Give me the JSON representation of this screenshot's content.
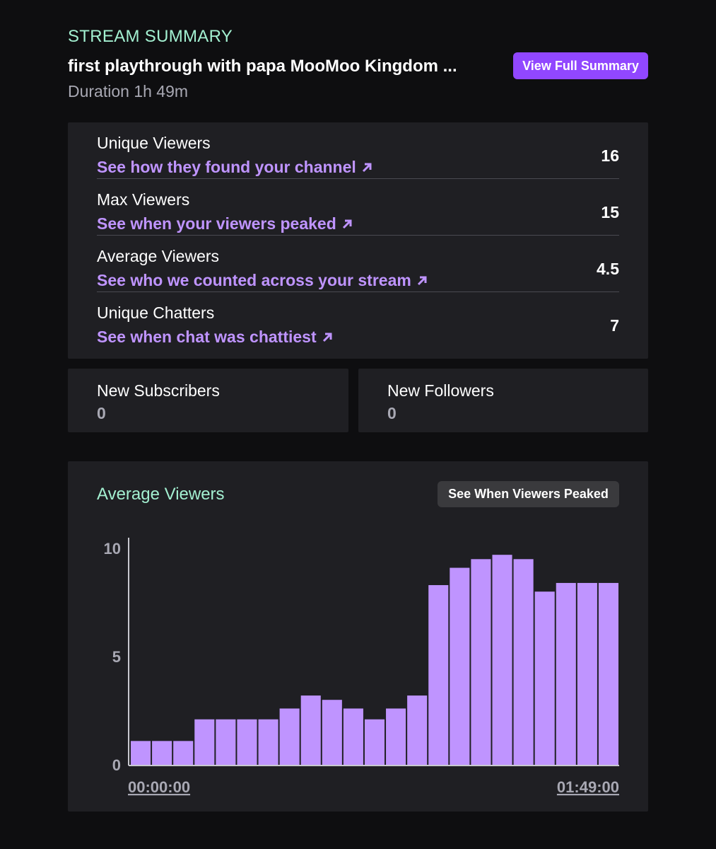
{
  "header": {
    "eyebrow": "STREAM SUMMARY",
    "stream_title": "first playthrough with papa MooMoo Kingdom ...",
    "duration": "Duration 1h 49m",
    "full_summary_label": "View Full Summary"
  },
  "stats": [
    {
      "label": "Unique Viewers",
      "link": "See how they found your channel",
      "value": "16"
    },
    {
      "label": "Max Viewers",
      "link": "See when your viewers peaked",
      "value": "15"
    },
    {
      "label": "Average Viewers",
      "link": "See who we counted across your stream",
      "value": "4.5"
    },
    {
      "label": "Unique Chatters",
      "link": "See when chat was chattiest",
      "value": "7"
    }
  ],
  "mini_stats": [
    {
      "label": "New Subscribers",
      "value": "0"
    },
    {
      "label": "New Followers",
      "value": "0"
    }
  ],
  "chart_section": {
    "title": "Average Viewers",
    "peak_button_label": "See When Viewers Peaked"
  },
  "chart_data": {
    "type": "bar",
    "title": "Average Viewers",
    "y_ticks": [
      "10",
      "5",
      "0"
    ],
    "ylim": [
      0,
      10
    ],
    "x_start_label": "00:00:00",
    "x_end_label": "01:49:00",
    "bar_color": "#bf94ff",
    "values": [
      1.1,
      1.1,
      1.1,
      2.1,
      2.1,
      2.1,
      2.1,
      2.6,
      3.2,
      3.0,
      2.6,
      2.1,
      2.6,
      3.2,
      8.3,
      9.1,
      9.5,
      9.7,
      9.5,
      8.0,
      8.4,
      8.4,
      8.4
    ]
  }
}
